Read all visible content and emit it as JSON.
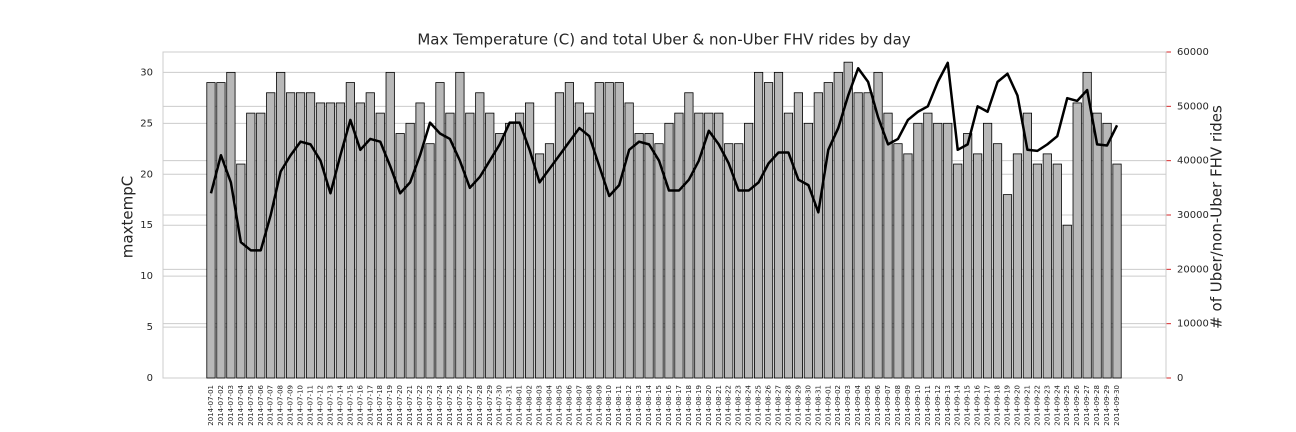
{
  "chart_data": {
    "type": "bar",
    "title": "Max Temperature (C) and total Uber & non-Uber FHV rides by day",
    "y_label": "maxtempC",
    "y2_label": "# of Uber/non-Uber FHV rides",
    "categories": [
      "2014-07-01",
      "2014-07-02",
      "2014-07-03",
      "2014-07-04",
      "2014-07-05",
      "2014-07-06",
      "2014-07-07",
      "2014-07-08",
      "2014-07-09",
      "2014-07-10",
      "2014-07-11",
      "2014-07-12",
      "2014-07-13",
      "2014-07-14",
      "2014-07-15",
      "2014-07-16",
      "2014-07-17",
      "2014-07-18",
      "2014-07-19",
      "2014-07-20",
      "2014-07-21",
      "2014-07-22",
      "2014-07-23",
      "2014-07-24",
      "2014-07-25",
      "2014-07-26",
      "2014-07-27",
      "2014-07-28",
      "2014-07-29",
      "2014-07-30",
      "2014-07-31",
      "2014-08-01",
      "2014-08-02",
      "2014-08-03",
      "2014-08-04",
      "2014-08-05",
      "2014-08-06",
      "2014-08-07",
      "2014-08-08",
      "2014-08-09",
      "2014-08-10",
      "2014-08-11",
      "2014-08-12",
      "2014-08-13",
      "2014-08-14",
      "2014-08-15",
      "2014-08-16",
      "2014-08-17",
      "2014-08-18",
      "2014-08-19",
      "2014-08-20",
      "2014-08-21",
      "2014-08-22",
      "2014-08-23",
      "2014-08-24",
      "2014-08-25",
      "2014-08-26",
      "2014-08-27",
      "2014-08-28",
      "2014-08-29",
      "2014-08-30",
      "2014-08-31",
      "2014-09-01",
      "2014-09-02",
      "2014-09-03",
      "2014-09-04",
      "2014-09-05",
      "2014-09-06",
      "2014-09-07",
      "2014-09-08",
      "2014-09-09",
      "2014-09-10",
      "2014-09-11",
      "2014-09-12",
      "2014-09-13",
      "2014-09-14",
      "2014-09-15",
      "2014-09-16",
      "2014-09-17",
      "2014-09-18",
      "2014-09-19",
      "2014-09-20",
      "2014-09-21",
      "2014-09-22",
      "2014-09-23",
      "2014-09-24",
      "2014-09-25",
      "2014-09-26",
      "2014-09-27",
      "2014-09-28",
      "2014-09-29",
      "2014-09-30"
    ],
    "series": [
      {
        "name": "maxtempC",
        "type": "bar",
        "color": "#b8b8b8",
        "values": [
          29,
          29,
          30,
          21,
          26,
          26,
          28,
          30,
          28,
          28,
          28,
          27,
          27,
          27,
          29,
          27,
          28,
          26,
          30,
          24,
          25,
          27,
          23,
          29,
          26,
          30,
          26,
          28,
          26,
          24,
          25,
          26,
          27,
          22,
          23,
          28,
          29,
          27,
          26,
          29,
          29,
          29,
          27,
          24,
          24,
          23,
          25,
          26,
          28,
          26,
          26,
          26,
          23,
          23,
          25,
          30,
          29,
          30,
          26,
          28,
          25,
          28,
          29,
          30,
          31,
          28,
          28,
          30,
          26,
          23,
          22,
          25,
          26,
          25,
          25,
          21,
          24,
          22,
          25,
          23,
          18,
          22,
          26,
          21,
          22,
          21,
          15,
          27,
          30,
          26,
          25,
          21
        ]
      },
      {
        "name": "rides",
        "type": "line",
        "axis": "y2",
        "color": "#000000",
        "values": [
          34000,
          41000,
          36000,
          25000,
          23500,
          23500,
          30000,
          38000,
          41000,
          43500,
          43000,
          40000,
          34000,
          41000,
          47500,
          42000,
          44000,
          43500,
          39000,
          34000,
          36000,
          41000,
          47000,
          45000,
          44000,
          40000,
          35000,
          37000,
          40000,
          43000,
          47000,
          47000,
          42000,
          36000,
          38500,
          41000,
          43500,
          46000,
          44500,
          39000,
          33500,
          35500,
          42000,
          43500,
          43000,
          40000,
          34500,
          34500,
          36500,
          40000,
          45500,
          43000,
          39500,
          34500,
          34500,
          36000,
          39500,
          41500,
          41500,
          36500,
          35500,
          30500,
          42000,
          46000,
          52000,
          57000,
          54500,
          48000,
          43000,
          44000,
          47500,
          49000,
          50000,
          54500,
          58000,
          42000,
          43000,
          50000,
          49000,
          54500,
          56000,
          52000,
          42000,
          41800,
          43000,
          44500,
          51500,
          51000,
          53000,
          43000,
          42800,
          46500
        ]
      }
    ],
    "ylim": [
      0,
      32
    ],
    "yticks": [
      0,
      5,
      10,
      15,
      20,
      25,
      30
    ],
    "y2lim": [
      0,
      60000
    ],
    "y2ticks": [
      0,
      10000,
      20000,
      30000,
      40000,
      50000,
      60000
    ],
    "y2_tick_color": "#d62728",
    "grid": true
  }
}
